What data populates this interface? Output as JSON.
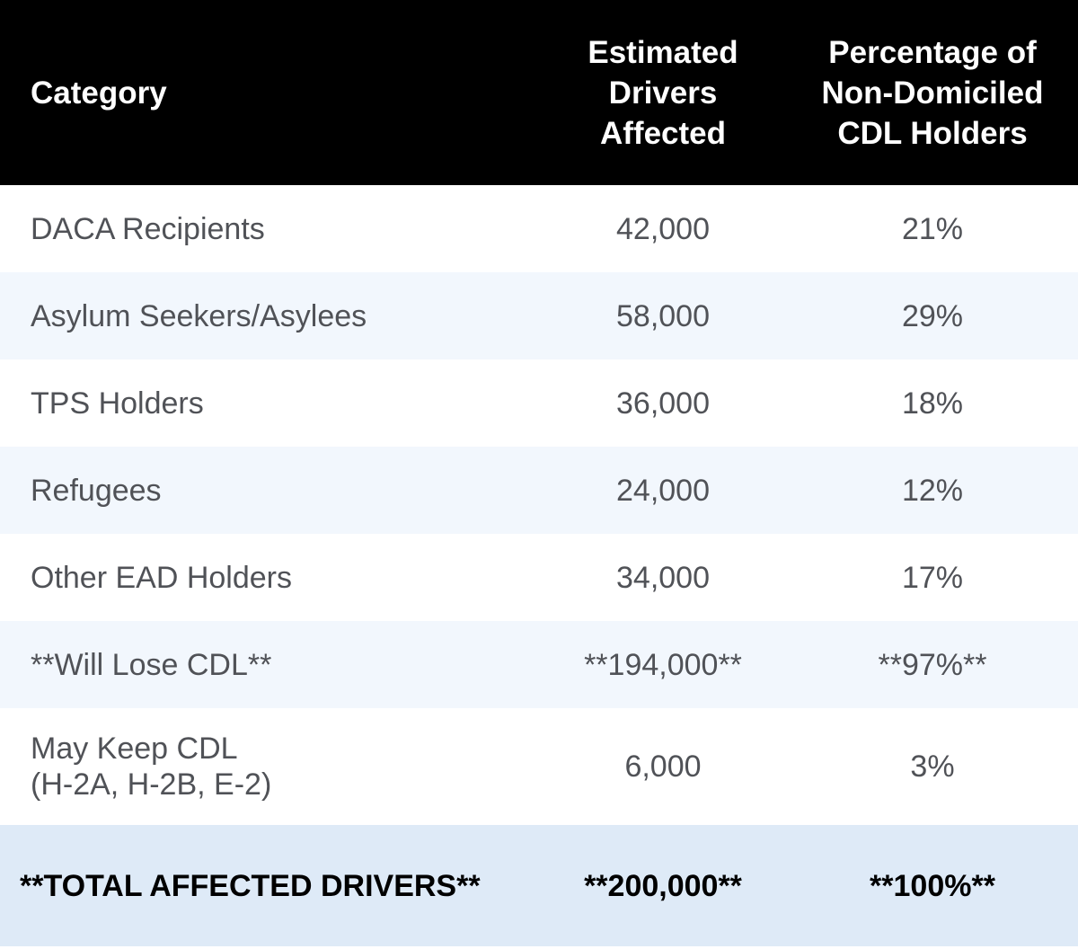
{
  "table": {
    "headers": [
      "Category",
      "Estimated Drivers Affected",
      "Percentage of Non-Domiciled CDL Holders"
    ],
    "header_lines": {
      "col2": [
        "Estimated",
        "Drivers",
        "Affected"
      ],
      "col3": [
        "Percentage of",
        "Non-Domiciled",
        "CDL Holders"
      ]
    },
    "rows": [
      {
        "category": "DACA Recipients",
        "drivers": "42,000",
        "percent": "21%"
      },
      {
        "category": "Asylum Seekers/Asylees",
        "drivers": "58,000",
        "percent": "29%"
      },
      {
        "category": "TPS Holders",
        "drivers": "36,000",
        "percent": "18%"
      },
      {
        "category": "Refugees",
        "drivers": "24,000",
        "percent": "12%"
      },
      {
        "category": "Other EAD Holders",
        "drivers": "34,000",
        "percent": "17%"
      },
      {
        "category": "**Will Lose CDL**",
        "drivers": "**194,000**",
        "percent": "**97%**"
      },
      {
        "category_lines": [
          "May Keep CDL",
          "(H-2A, H-2B, E-2)"
        ],
        "drivers": "6,000",
        "percent": "3%"
      }
    ],
    "total": {
      "category": "**TOTAL AFFECTED DRIVERS**",
      "drivers": "**200,000**",
      "percent": "**100%**"
    }
  },
  "colors": {
    "header_bg": "#000000",
    "alt_row_bg": "#f2f7fd",
    "total_bg": "#deeaf7",
    "text": "#505257"
  }
}
